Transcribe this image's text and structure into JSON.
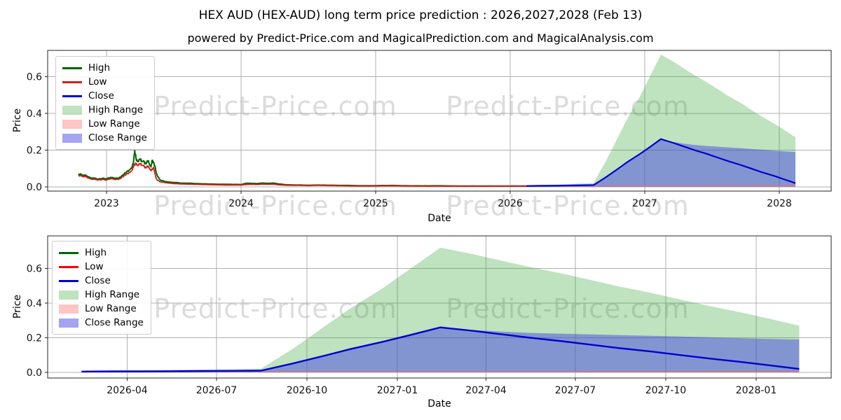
{
  "title": "HEX AUD (HEX-AUD) long term price prediction : 2026,2027,2028 (Feb 13)",
  "subtitle": "powered by Predict-Price.com and MagicalPrediction.com and MagicalAnalysis.com",
  "watermark": {
    "text": "Predict-Price.com",
    "color": "#dcdcdc"
  },
  "colors": {
    "grid": "#b0b0b0",
    "spine": "#262626",
    "high_line": "#006400",
    "low_line_top_chart": "#c92020",
    "low_line_bottom_chart": "#ff0000",
    "close_line": "#0000cd",
    "high_range_fill": "rgba(44,160,44,0.30)",
    "low_range_fill": "rgba(255,99,99,0.38)",
    "close_range_fill": "rgba(64,64,230,0.48)"
  },
  "chart_data": [
    {
      "type": "line",
      "title": "",
      "xlabel": "Date",
      "ylabel": "Price",
      "grid": true,
      "xlim": [
        2022.56,
        2028.39
      ],
      "ylim": [
        -0.023,
        0.743
      ],
      "x_ticks": [
        {
          "label": "2023",
          "t": 2023.0
        },
        {
          "label": "2024",
          "t": 2024.0
        },
        {
          "label": "2025",
          "t": 2025.0
        },
        {
          "label": "2026",
          "t": 2026.0
        },
        {
          "label": "2027",
          "t": 2027.0
        },
        {
          "label": "2028",
          "t": 2028.0
        }
      ],
      "y_ticks": [
        {
          "label": "0.0",
          "v": 0.0
        },
        {
          "label": "0.2",
          "v": 0.2
        },
        {
          "label": "0.4",
          "v": 0.4
        },
        {
          "label": "0.6",
          "v": 0.6
        }
      ],
      "legend": {
        "position": "upper left",
        "items": [
          {
            "label": "High",
            "swatch": "line",
            "color": "#006400"
          },
          {
            "label": "Low",
            "swatch": "line",
            "color": "#c92020"
          },
          {
            "label": "Close",
            "swatch": "line",
            "color": "#0000cd"
          },
          {
            "label": "High Range",
            "swatch": "patch",
            "color": "rgba(44,160,44,0.30)"
          },
          {
            "label": "Low Range",
            "swatch": "patch",
            "color": "rgba(255,99,99,0.38)"
          },
          {
            "label": "Close Range",
            "swatch": "patch",
            "color": "rgba(64,64,230,0.48)"
          }
        ]
      },
      "series": [
        {
          "name": "High",
          "kind": "history",
          "color": "#006400",
          "width": 2,
          "t": [
            2022.79,
            2022.82,
            2022.85,
            2022.88,
            2022.91,
            2022.94,
            2022.97,
            2023.0,
            2023.03,
            2023.06,
            2023.09,
            2023.11,
            2023.13,
            2023.15,
            2023.17,
            2023.19,
            2023.2,
            2023.21,
            2023.22,
            2023.23,
            2023.25,
            2023.26,
            2023.28,
            2023.29,
            2023.31,
            2023.32,
            2023.33,
            2023.34,
            2023.35,
            2023.36,
            2023.37,
            2023.38,
            2023.4,
            2023.43,
            2023.46,
            2023.5,
            2023.55,
            2023.6,
            2023.67,
            2023.75,
            2023.83,
            2023.92,
            2024.0,
            2024.04,
            2024.08,
            2024.12,
            2024.16,
            2024.2,
            2024.24,
            2024.28,
            2024.33,
            2024.42,
            2024.5,
            2024.58,
            2024.67,
            2024.75,
            2024.87,
            2025.0,
            2025.12,
            2025.25,
            2025.37,
            2025.5,
            2025.62,
            2025.75,
            2025.87,
            2026.0,
            2026.12
          ],
          "values": [
            0.07,
            0.066,
            0.061,
            0.05,
            0.047,
            0.043,
            0.046,
            0.044,
            0.051,
            0.048,
            0.046,
            0.058,
            0.07,
            0.082,
            0.092,
            0.108,
            0.135,
            0.198,
            0.152,
            0.14,
            0.15,
            0.142,
            0.136,
            0.128,
            0.14,
            0.12,
            0.108,
            0.145,
            0.13,
            0.112,
            0.075,
            0.056,
            0.038,
            0.03,
            0.027,
            0.024,
            0.021,
            0.02,
            0.018,
            0.016,
            0.015,
            0.014,
            0.013,
            0.02,
            0.019,
            0.018,
            0.021,
            0.019,
            0.021,
            0.016,
            0.012,
            0.01,
            0.009,
            0.01,
            0.009,
            0.008,
            0.007,
            0.007,
            0.008,
            0.006,
            0.006,
            0.006,
            0.005,
            0.005,
            0.005,
            0.005,
            0.005
          ]
        },
        {
          "name": "Low",
          "kind": "history",
          "color": "#c92020",
          "width": 1.8,
          "t": [
            2022.79,
            2022.82,
            2022.85,
            2022.88,
            2022.91,
            2022.94,
            2022.97,
            2023.0,
            2023.03,
            2023.06,
            2023.09,
            2023.11,
            2023.13,
            2023.15,
            2023.17,
            2023.19,
            2023.2,
            2023.21,
            2023.22,
            2023.23,
            2023.25,
            2023.26,
            2023.28,
            2023.29,
            2023.31,
            2023.32,
            2023.33,
            2023.34,
            2023.35,
            2023.36,
            2023.37,
            2023.38,
            2023.4,
            2023.43,
            2023.46,
            2023.5,
            2023.55,
            2023.6,
            2023.67,
            2023.75,
            2023.83,
            2023.92,
            2024.0,
            2024.04,
            2024.08,
            2024.12,
            2024.16,
            2024.2,
            2024.24,
            2024.28,
            2024.33,
            2024.42,
            2024.5,
            2024.58,
            2024.67,
            2024.75,
            2024.87,
            2025.0,
            2025.12,
            2025.25,
            2025.37,
            2025.5,
            2025.62,
            2025.75,
            2025.87,
            2026.0,
            2026.12
          ],
          "values": [
            0.062,
            0.058,
            0.054,
            0.044,
            0.041,
            0.038,
            0.04,
            0.038,
            0.044,
            0.041,
            0.04,
            0.05,
            0.06,
            0.07,
            0.078,
            0.09,
            0.112,
            0.122,
            0.128,
            0.118,
            0.126,
            0.12,
            0.112,
            0.106,
            0.11,
            0.098,
            0.088,
            0.095,
            0.105,
            0.07,
            0.045,
            0.035,
            0.028,
            0.024,
            0.021,
            0.018,
            0.016,
            0.015,
            0.014,
            0.012,
            0.011,
            0.01,
            0.01,
            0.013,
            0.014,
            0.013,
            0.015,
            0.014,
            0.015,
            0.011,
            0.009,
            0.008,
            0.007,
            0.008,
            0.007,
            0.006,
            0.005,
            0.005,
            0.006,
            0.005,
            0.004,
            0.004,
            0.004,
            0.004,
            0.004,
            0.004,
            0.004
          ]
        },
        {
          "name": "Close",
          "kind": "prediction",
          "color": "#0000cd",
          "width": 2.2,
          "t": [
            2026.12,
            2026.21,
            2026.29,
            2026.37,
            2026.46,
            2026.54,
            2026.62,
            2026.71,
            2026.79,
            2026.87,
            2026.96,
            2027.04,
            2027.12,
            2027.21,
            2027.29,
            2027.37,
            2027.46,
            2027.54,
            2027.62,
            2027.71,
            2027.79,
            2027.87,
            2027.96,
            2028.04,
            2028.12
          ],
          "values": [
            0.005,
            0.006,
            0.006,
            0.007,
            0.008,
            0.009,
            0.01,
            0.052,
            0.093,
            0.135,
            0.177,
            0.218,
            0.26,
            0.24,
            0.22,
            0.2,
            0.18,
            0.16,
            0.14,
            0.12,
            0.1,
            0.08,
            0.06,
            0.04,
            0.02
          ]
        }
      ],
      "bands": [
        {
          "name": "High Range",
          "color": "rgba(44,160,44,0.30)",
          "t": [
            2026.12,
            2026.21,
            2026.29,
            2026.37,
            2026.46,
            2026.54,
            2026.62,
            2026.71,
            2026.79,
            2026.87,
            2026.96,
            2027.04,
            2027.12,
            2027.21,
            2027.29,
            2027.37,
            2027.46,
            2027.54,
            2027.62,
            2027.71,
            2027.79,
            2027.87,
            2027.96,
            2028.04,
            2028.12
          ],
          "top": [
            0.008,
            0.01,
            0.012,
            0.014,
            0.016,
            0.019,
            0.022,
            0.138,
            0.255,
            0.371,
            0.487,
            0.604,
            0.72,
            0.683,
            0.645,
            0.608,
            0.57,
            0.533,
            0.495,
            0.458,
            0.42,
            0.383,
            0.345,
            0.308,
            0.27
          ],
          "bottom": 0.001
        },
        {
          "name": "Close Range",
          "color": "rgba(64,64,230,0.48)",
          "t": [
            2026.12,
            2026.21,
            2026.29,
            2026.37,
            2026.46,
            2026.54,
            2026.62,
            2026.71,
            2026.79,
            2026.87,
            2026.96,
            2027.04,
            2027.12,
            2027.21,
            2027.29,
            2027.37,
            2027.46,
            2027.54,
            2027.62,
            2027.71,
            2027.79,
            2027.87,
            2027.96,
            2028.04,
            2028.12
          ],
          "top": [
            0.005,
            0.006,
            0.006,
            0.007,
            0.008,
            0.009,
            0.01,
            0.052,
            0.093,
            0.135,
            0.177,
            0.218,
            0.26,
            0.245,
            0.235,
            0.228,
            0.223,
            0.219,
            0.215,
            0.211,
            0.207,
            0.203,
            0.197,
            0.193,
            0.19
          ],
          "bottom": 0.001
        },
        {
          "name": "Low Range",
          "color": "rgba(255,99,99,0.38)",
          "t": [
            2026.12,
            2026.21,
            2026.29,
            2026.37,
            2026.46,
            2026.54,
            2026.62,
            2026.71,
            2026.79,
            2026.87,
            2026.96,
            2027.04,
            2027.12,
            2027.21,
            2027.29,
            2027.37,
            2027.46,
            2027.54,
            2027.62,
            2027.71,
            2027.79,
            2027.87,
            2027.96,
            2028.04,
            2028.12
          ],
          "top": [
            0.009,
            0.009,
            0.009,
            0.009,
            0.009,
            0.009,
            0.009,
            0.01,
            0.01,
            0.01,
            0.01,
            0.01,
            0.01,
            0.01,
            0.01,
            0.01,
            0.01,
            0.011,
            0.011,
            0.011,
            0.011,
            0.012,
            0.012,
            0.012,
            0.012
          ],
          "bottom": 0.0
        }
      ]
    },
    {
      "type": "line",
      "title": "",
      "xlabel": "Date",
      "ylabel": "Price",
      "grid": true,
      "xlim": [
        2026.03,
        2028.21
      ],
      "ylim": [
        -0.032,
        0.788
      ],
      "x_ticks": [
        {
          "label": "2026-04",
          "t": 2026.247
        },
        {
          "label": "2026-07",
          "t": 2026.496
        },
        {
          "label": "2026-10",
          "t": 2026.748
        },
        {
          "label": "2027-01",
          "t": 2027.0
        },
        {
          "label": "2027-04",
          "t": 2027.247
        },
        {
          "label": "2027-07",
          "t": 2027.496
        },
        {
          "label": "2027-10",
          "t": 2027.748
        },
        {
          "label": "2028-01",
          "t": 2028.0
        }
      ],
      "y_ticks": [
        {
          "label": "0.0",
          "v": 0.0
        },
        {
          "label": "0.2",
          "v": 0.2
        },
        {
          "label": "0.4",
          "v": 0.4
        },
        {
          "label": "0.6",
          "v": 0.6
        }
      ],
      "legend": {
        "position": "upper left",
        "items": [
          {
            "label": "High",
            "swatch": "line",
            "color": "#006400"
          },
          {
            "label": "Low",
            "swatch": "line",
            "color": "#ff0000"
          },
          {
            "label": "Close",
            "swatch": "line",
            "color": "#0000cd"
          },
          {
            "label": "High Range",
            "swatch": "patch",
            "color": "rgba(44,160,44,0.30)"
          },
          {
            "label": "Low Range",
            "swatch": "patch",
            "color": "rgba(255,99,99,0.38)"
          },
          {
            "label": "Close Range",
            "swatch": "patch",
            "color": "rgba(64,64,230,0.48)"
          }
        ]
      },
      "series": [
        {
          "name": "Close",
          "kind": "prediction",
          "color": "#0000cd",
          "width": 2.4,
          "t": [
            2026.12,
            2026.21,
            2026.29,
            2026.37,
            2026.46,
            2026.54,
            2026.62,
            2026.71,
            2026.79,
            2026.87,
            2026.96,
            2027.04,
            2027.12,
            2027.21,
            2027.29,
            2027.37,
            2027.46,
            2027.54,
            2027.62,
            2027.71,
            2027.79,
            2027.87,
            2027.96,
            2028.04,
            2028.12
          ],
          "values": [
            0.005,
            0.006,
            0.006,
            0.007,
            0.008,
            0.009,
            0.01,
            0.052,
            0.093,
            0.135,
            0.177,
            0.218,
            0.26,
            0.24,
            0.22,
            0.2,
            0.18,
            0.16,
            0.14,
            0.12,
            0.1,
            0.08,
            0.06,
            0.04,
            0.02
          ]
        }
      ],
      "bands": [
        {
          "name": "High Range",
          "color": "rgba(44,160,44,0.30)",
          "t": [
            2026.12,
            2026.21,
            2026.29,
            2026.37,
            2026.46,
            2026.54,
            2026.62,
            2026.71,
            2026.79,
            2026.87,
            2026.96,
            2027.04,
            2027.12,
            2027.21,
            2027.29,
            2027.37,
            2027.46,
            2027.54,
            2027.62,
            2027.71,
            2027.79,
            2027.87,
            2027.96,
            2028.04,
            2028.12
          ],
          "top": [
            0.008,
            0.01,
            0.012,
            0.014,
            0.016,
            0.019,
            0.022,
            0.138,
            0.255,
            0.371,
            0.487,
            0.604,
            0.72,
            0.683,
            0.645,
            0.608,
            0.57,
            0.533,
            0.495,
            0.458,
            0.42,
            0.383,
            0.345,
            0.308,
            0.27
          ],
          "bottom": 0.001
        },
        {
          "name": "Close Range",
          "color": "rgba(64,64,230,0.48)",
          "t": [
            2026.12,
            2026.21,
            2026.29,
            2026.37,
            2026.46,
            2026.54,
            2026.62,
            2026.71,
            2026.79,
            2026.87,
            2026.96,
            2027.04,
            2027.12,
            2027.21,
            2027.29,
            2027.37,
            2027.46,
            2027.54,
            2027.62,
            2027.71,
            2027.79,
            2027.87,
            2027.96,
            2028.04,
            2028.12
          ],
          "top": [
            0.005,
            0.006,
            0.006,
            0.007,
            0.008,
            0.009,
            0.01,
            0.052,
            0.093,
            0.135,
            0.177,
            0.218,
            0.26,
            0.245,
            0.235,
            0.228,
            0.223,
            0.219,
            0.215,
            0.211,
            0.207,
            0.203,
            0.197,
            0.193,
            0.19
          ],
          "bottom": 0.001
        },
        {
          "name": "Low Range",
          "color": "rgba(255,99,99,0.38)",
          "t": [
            2026.12,
            2026.21,
            2026.29,
            2026.37,
            2026.46,
            2026.54,
            2026.62,
            2026.71,
            2026.79,
            2026.87,
            2026.96,
            2027.04,
            2027.12,
            2027.21,
            2027.29,
            2027.37,
            2027.46,
            2027.54,
            2027.62,
            2027.71,
            2027.79,
            2027.87,
            2027.96,
            2028.04,
            2028.12
          ],
          "top": [
            0.009,
            0.009,
            0.009,
            0.009,
            0.009,
            0.009,
            0.009,
            0.01,
            0.01,
            0.01,
            0.01,
            0.01,
            0.01,
            0.01,
            0.01,
            0.01,
            0.01,
            0.011,
            0.011,
            0.011,
            0.011,
            0.012,
            0.012,
            0.012,
            0.012
          ],
          "bottom": 0.0
        }
      ]
    }
  ]
}
